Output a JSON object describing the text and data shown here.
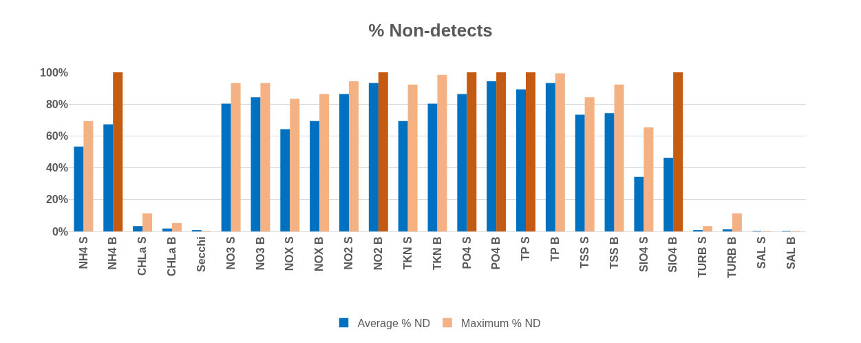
{
  "chart_data": {
    "type": "bar",
    "title": "% Non-detects",
    "categories": [
      "NH4 S",
      "NH4 B",
      "CHLa S",
      "CHLa B",
      "Secchi",
      "NO3 S",
      "NO3 B",
      "NOX S",
      "NOX B",
      "NO2 S",
      "NO2 B",
      "TKN S",
      "TKN B",
      "PO4 S",
      "PO4 B",
      "TP S",
      "TP B",
      "TSS S",
      "TSS B",
      "SIO4 S",
      "SIO4 B",
      "TURB S",
      "TURB B",
      "SAL S",
      "SAL B"
    ],
    "series": [
      {
        "name": "Average % ND",
        "color": "#0070c0",
        "values": [
          53,
          67,
          3,
          1.5,
          0.5,
          80,
          84,
          64,
          69,
          86,
          93,
          69,
          80,
          86,
          94,
          89,
          93,
          73,
          74,
          34,
          46,
          0.5,
          1,
          0,
          0
        ]
      },
      {
        "name": "Maximum % ND",
        "colors": [
          "#f4b183",
          "#c55a11",
          "#f4b183",
          "#f4b183",
          "#f4b183",
          "#f4b183",
          "#f4b183",
          "#f4b183",
          "#f4b183",
          "#f4b183",
          "#c55a11",
          "#f4b183",
          "#f4b183",
          "#c55a11",
          "#c55a11",
          "#c55a11",
          "#f4b183",
          "#f4b183",
          "#f4b183",
          "#f4b183",
          "#c55a11",
          "#f4b183",
          "#f4b183",
          "#f4b183",
          "#f4b183"
        ],
        "values": [
          69,
          100,
          11,
          5,
          0,
          93,
          93,
          83,
          86,
          94,
          100,
          92,
          98,
          100,
          100,
          100,
          99,
          84,
          92,
          65,
          100,
          3,
          11,
          0,
          0
        ]
      }
    ],
    "ylim": [
      0,
      100
    ],
    "yticks": [
      {
        "value": 0,
        "label": "0%"
      },
      {
        "value": 20,
        "label": "20%"
      },
      {
        "value": 40,
        "label": "40%"
      },
      {
        "value": 60,
        "label": "60%"
      },
      {
        "value": 80,
        "label": "80%"
      },
      {
        "value": 100,
        "label": "100%"
      }
    ],
    "grid": "y",
    "legend": "bottom"
  }
}
